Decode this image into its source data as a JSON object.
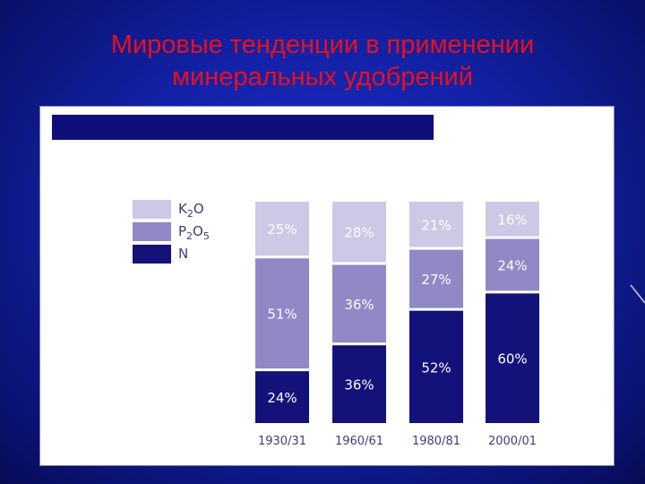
{
  "slide": {
    "title_line1": "Мировые тенденции в применении",
    "title_line2": "минеральных удобрений"
  },
  "colors": {
    "background": "#1422a8",
    "title": "#e8101a",
    "panel": "#ffffff",
    "panel_bar": "#0f0f7a"
  },
  "chart_data": {
    "type": "bar",
    "stacked": true,
    "percent_stacked": true,
    "categories": [
      "1930/31",
      "1960/61",
      "1980/81",
      "2000/01"
    ],
    "series": [
      {
        "name": "N",
        "values": [
          24,
          36,
          52,
          60
        ],
        "labels": [
          "24%",
          "36%",
          "52%",
          "60%"
        ],
        "color": "#12127a"
      },
      {
        "name": "P2O5",
        "values": [
          51,
          36,
          27,
          24
        ],
        "labels": [
          "51%",
          "36%",
          "27%",
          "24%"
        ],
        "color": "#9089c6"
      },
      {
        "name": "K2O",
        "values": [
          25,
          28,
          21,
          16
        ],
        "labels": [
          "25%",
          "28%",
          "21%",
          "16%"
        ],
        "color": "#ccc8e6"
      }
    ],
    "legend": {
      "position": "top-left",
      "order": [
        "K2O",
        "P2O5",
        "N"
      ],
      "entries": [
        {
          "base": "K",
          "sub": "2",
          "rest": "O",
          "color": "#ccc8e6"
        },
        {
          "base": "P",
          "sub": "2",
          "rest": "O",
          "sub2": "5",
          "color": "#9089c6"
        },
        {
          "base": "N",
          "sub": "",
          "rest": "",
          "color": "#12127a"
        }
      ]
    },
    "ylim": [
      0,
      100
    ],
    "grid": false,
    "title": "",
    "xlabel": "",
    "ylabel": ""
  }
}
